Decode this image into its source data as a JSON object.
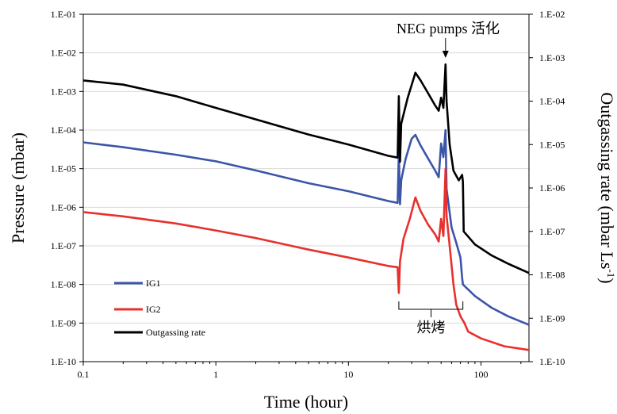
{
  "chart_data": {
    "type": "line",
    "x_scale": "log",
    "y_scale": "log",
    "xlim": [
      0.1,
      230
    ],
    "ylim_left": [
      1e-10,
      0.1
    ],
    "ylim_right": [
      1e-10,
      0.01
    ],
    "xlabel": "Time (hour)",
    "ylabel_left": "Pressure (mbar)",
    "ylabel_right": "Outgassing rate (mbar Ls",
    "ylabel_right_sup": "-1",
    "ylabel_right_close": ")",
    "x_ticks": [
      {
        "value": 0.1,
        "label": "0.1"
      },
      {
        "value": 1,
        "label": "1"
      },
      {
        "value": 10,
        "label": "10"
      },
      {
        "value": 100,
        "label": "100"
      }
    ],
    "y_ticks_left": [
      {
        "value": 0.1,
        "label": "1.E-01"
      },
      {
        "value": 0.01,
        "label": "1.E-02"
      },
      {
        "value": 0.001,
        "label": "1.E-03"
      },
      {
        "value": 0.0001,
        "label": "1.E-04"
      },
      {
        "value": 1e-05,
        "label": "1.E-05"
      },
      {
        "value": 1e-06,
        "label": "1.E-06"
      },
      {
        "value": 1e-07,
        "label": "1.E-07"
      },
      {
        "value": 1e-08,
        "label": "1.E-08"
      },
      {
        "value": 1e-09,
        "label": "1.E-09"
      },
      {
        "value": 1e-10,
        "label": "1.E-10"
      }
    ],
    "y_ticks_right": [
      {
        "value": 0.01,
        "label": "1.E-02"
      },
      {
        "value": 0.001,
        "label": "1.E-03"
      },
      {
        "value": 0.0001,
        "label": "1.E-04"
      },
      {
        "value": 1e-05,
        "label": "1.E-05"
      },
      {
        "value": 1e-06,
        "label": "1.E-06"
      },
      {
        "value": 1e-07,
        "label": "1.E-07"
      },
      {
        "value": 1e-08,
        "label": "1.E-08"
      },
      {
        "value": 1e-09,
        "label": "1.E-09"
      },
      {
        "value": 1e-10,
        "label": "1.E-10"
      }
    ],
    "legend_position": "bottom-left",
    "series": [
      {
        "name": "IG1",
        "color": "#3b55a8",
        "axis": "left",
        "points": [
          [
            0.1,
            4.8e-05
          ],
          [
            0.2,
            3.6e-05
          ],
          [
            0.5,
            2.3e-05
          ],
          [
            1,
            1.55e-05
          ],
          [
            2,
            9e-06
          ],
          [
            5,
            4.2e-06
          ],
          [
            10,
            2.6e-06
          ],
          [
            20,
            1.45e-06
          ],
          [
            23.5,
            1.3e-06
          ],
          [
            24,
            2.5e-05
          ],
          [
            24.5,
            1.2e-06
          ],
          [
            25,
            5e-06
          ],
          [
            27,
            1.8e-05
          ],
          [
            30,
            6e-05
          ],
          [
            32,
            7.5e-05
          ],
          [
            35,
            4e-05
          ],
          [
            40,
            1.8e-05
          ],
          [
            45,
            9e-06
          ],
          [
            48,
            6e-06
          ],
          [
            50,
            4.5e-05
          ],
          [
            52,
            2e-05
          ],
          [
            54,
            0.0001
          ],
          [
            55,
            3e-06
          ],
          [
            60,
            3e-07
          ],
          [
            65,
            1.2e-07
          ],
          [
            70,
            5e-08
          ],
          [
            72,
            1.5e-08
          ],
          [
            73,
            1e-08
          ],
          [
            90,
            5e-09
          ],
          [
            120,
            2.5e-09
          ],
          [
            160,
            1.5e-09
          ],
          [
            230,
            9e-10
          ]
        ]
      },
      {
        "name": "IG2",
        "color": "#e8302c",
        "axis": "left",
        "points": [
          [
            0.1,
            7.5e-07
          ],
          [
            0.2,
            5.8e-07
          ],
          [
            0.5,
            3.8e-07
          ],
          [
            1,
            2.5e-07
          ],
          [
            2,
            1.6e-07
          ],
          [
            5,
            8e-08
          ],
          [
            10,
            5e-08
          ],
          [
            20,
            3e-08
          ],
          [
            23.5,
            2.8e-08
          ],
          [
            24,
            6e-09
          ],
          [
            24.5,
            4e-08
          ],
          [
            26,
            1.5e-07
          ],
          [
            29,
            5e-07
          ],
          [
            32,
            1.8e-06
          ],
          [
            35,
            8e-07
          ],
          [
            40,
            3.5e-07
          ],
          [
            45,
            2e-07
          ],
          [
            48,
            1.3e-07
          ],
          [
            50,
            5e-07
          ],
          [
            52,
            1.8e-07
          ],
          [
            54,
            1e-05
          ],
          [
            55,
            6e-07
          ],
          [
            58,
            1e-07
          ],
          [
            62,
            1e-08
          ],
          [
            65,
            3e-09
          ],
          [
            70,
            1.5e-09
          ],
          [
            75,
            1e-09
          ],
          [
            80,
            6e-10
          ],
          [
            100,
            4e-10
          ],
          [
            150,
            2.5e-10
          ],
          [
            230,
            2e-10
          ]
        ]
      },
      {
        "name": "Outgassing rate",
        "color": "#000000",
        "axis": "right",
        "points": [
          [
            0.1,
            0.0003
          ],
          [
            0.2,
            0.00024
          ],
          [
            0.5,
            0.00013
          ],
          [
            1,
            7e-05
          ],
          [
            2,
            3.8e-05
          ],
          [
            5,
            1.7e-05
          ],
          [
            10,
            1e-05
          ],
          [
            20,
            5.5e-06
          ],
          [
            23.5,
            5e-06
          ],
          [
            24,
            0.00013
          ],
          [
            24.5,
            4e-06
          ],
          [
            25,
            3e-05
          ],
          [
            28,
            0.00012
          ],
          [
            32,
            0.00045
          ],
          [
            35,
            0.0003
          ],
          [
            40,
            0.00015
          ],
          [
            45,
            8e-05
          ],
          [
            48,
            6e-05
          ],
          [
            50,
            0.00012
          ],
          [
            52,
            7e-05
          ],
          [
            54,
            0.0007
          ],
          [
            55,
            0.0001
          ],
          [
            58,
            1e-05
          ],
          [
            62,
            2.5e-06
          ],
          [
            68,
            1.5e-06
          ],
          [
            72,
            2e-06
          ],
          [
            73,
            1.4e-06
          ],
          [
            74,
            1e-07
          ],
          [
            90,
            5e-08
          ],
          [
            120,
            2.8e-08
          ],
          [
            160,
            1.8e-08
          ],
          [
            230,
            1.1e-08
          ]
        ]
      }
    ],
    "annotations": {
      "neg_label": "NEG pumps 活化",
      "neg_x": 54,
      "bake_label": "烘烤",
      "bake_range": [
        24,
        73
      ],
      "bake_mid": 42
    }
  }
}
